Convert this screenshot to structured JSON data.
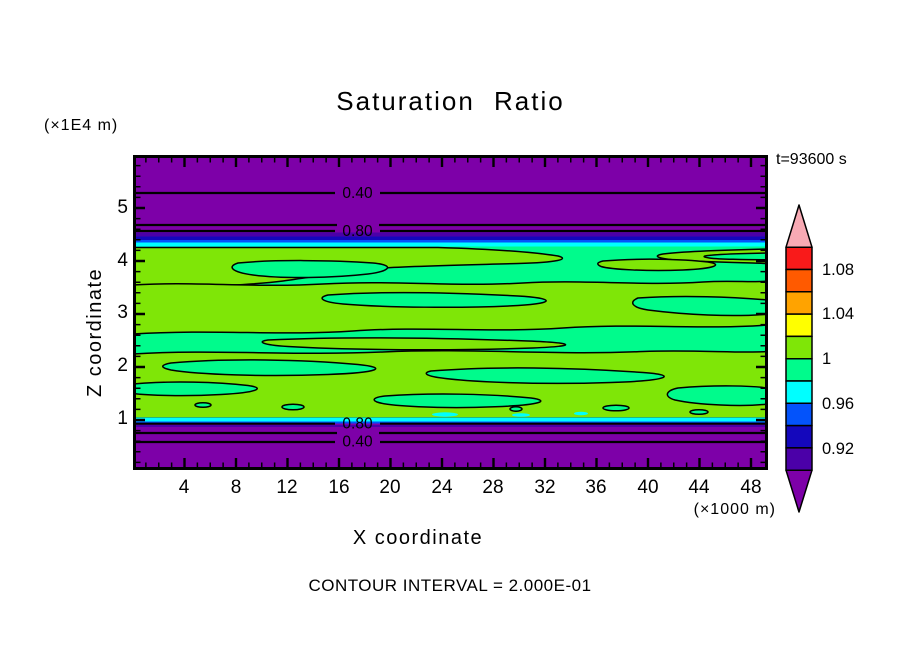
{
  "title": "Saturation Ratio",
  "time_label": "t=93600 s",
  "y_axis_unit": "(×1E4 m)",
  "x_axis_unit": "(×1000 m)",
  "x_axis_label": "X coordinate",
  "y_axis_label": "Z coordinate",
  "footer_note": "CONTOUR INTERVAL = 2.000E-01",
  "x_ticks": [
    "4",
    "8",
    "12",
    "16",
    "20",
    "24",
    "28",
    "32",
    "36",
    "40",
    "44",
    "48"
  ],
  "y_ticks": [
    "5",
    "4",
    "3",
    "2",
    "1"
  ],
  "contour_labels": {
    "top_a": "0.40",
    "top_b": "0.80",
    "bottom_a": "0.80",
    "bottom_b": "0.40"
  },
  "colorbar": {
    "labels": [
      "1.08",
      "1.04",
      "1",
      "0.96",
      "0.92"
    ]
  },
  "palette": {
    "purple": "#7D00A8",
    "indigo": "#4B00A8",
    "navy": "#1407BC",
    "blue": "#0353FB",
    "cyan": "#00FFFF",
    "springgreen": "#00FB8C",
    "chartreuse": "#7FE607",
    "yellow": "#FFFF00",
    "orange": "#FFA300",
    "orangered": "#FF5A00",
    "red": "#F91A1A",
    "pink": "#F8AAB4",
    "line": "#000000"
  },
  "chart_data": {
    "type": "heatmap",
    "subtype": "filled-contour",
    "title": "Saturation Ratio",
    "xlabel": "X coordinate",
    "x_unit": "×1000 m",
    "ylabel": "Z coordinate",
    "y_unit": "×1E4 m",
    "xlim": [
      0,
      49.3
    ],
    "ylim": [
      0,
      6
    ],
    "x_ticks": [
      4,
      8,
      12,
      16,
      20,
      24,
      28,
      32,
      36,
      40,
      44,
      48
    ],
    "y_ticks": [
      1,
      2,
      3,
      4,
      5
    ],
    "grid": false,
    "time_annotation": "t=93600 s",
    "contour_interval": 0.2,
    "contour_levels": [
      0.2,
      0.4,
      0.6,
      0.8,
      1.0
    ],
    "labeled_contour_lines": [
      0.4,
      0.8
    ],
    "colorbar": {
      "position": "right",
      "boundary_labels": [
        1.08,
        1.04,
        1,
        0.96,
        0.92
      ],
      "cell_interval": 0.02,
      "cell_mins_high_to_low": [
        1.1,
        1.08,
        1.06,
        1.04,
        1.02,
        1.0,
        0.98,
        0.96,
        0.94,
        0.92,
        0.9,
        null
      ],
      "cell_colors_high_to_low": [
        "#F8AAB4",
        "#F91A1A",
        "#FF5A00",
        "#FFA300",
        "#FFFF00",
        "#7FE607",
        "#00FB8C",
        "#00FFFF",
        "#0353FB",
        "#1407BC",
        "#4B00A8",
        "#7D00A8"
      ]
    },
    "field_summary": "Saturation ratio ≈ 0.98–1.02 (green, wavy interleaved 1.0 contour blobs) in the layer z ≈ 1.0–4.4 ×1E4 m; sharp gradient bands (cyan/blue/navy/indigo) at the layer edges; saturation < 0.2 (purple) above z ≈ 4.6 and below z ≈ 0.9, with horizontal 0.40/0.60/0.80 contour lines in the gradient zones",
    "z_profile_approx": {
      "z_x1e4m": [
        0.0,
        0.75,
        0.85,
        0.95,
        1.0,
        4.35,
        4.45,
        4.55,
        4.65,
        6.0
      ],
      "saturation": [
        0.1,
        0.3,
        0.6,
        0.85,
        1.0,
        1.0,
        0.85,
        0.6,
        0.35,
        0.1
      ]
    }
  }
}
